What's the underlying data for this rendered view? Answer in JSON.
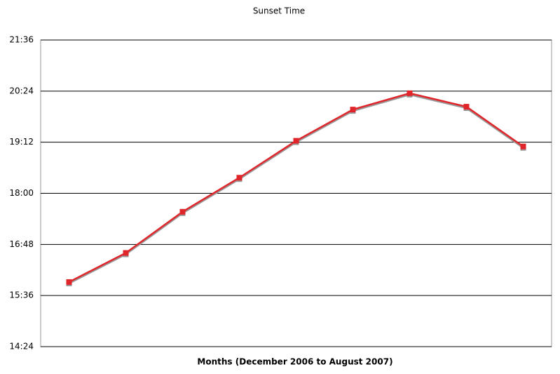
{
  "chart_data": {
    "type": "line",
    "title": "Sunset Time",
    "x_label": "Months (December 2006 to August 2007)",
    "categories": [
      null,
      null,
      null,
      null,
      null,
      null,
      null,
      null,
      null
    ],
    "series": [
      {
        "color": "#e0262b",
        "values": [
          955,
          996,
          1054,
          1102,
          1154,
          1198,
          1221,
          1202,
          1146
        ]
      }
    ],
    "ylim": [
      864,
      1296
    ],
    "yticks": [
      {
        "value": 864,
        "label": "14:24"
      },
      {
        "value": 936,
        "label": "15:36"
      },
      {
        "value": 1008,
        "label": "16:48"
      },
      {
        "value": 1080,
        "label": "18:00"
      },
      {
        "value": 1152,
        "label": "19:12"
      },
      {
        "value": 1224,
        "label": "20:24"
      },
      {
        "value": 1296,
        "label": "21:36"
      }
    ],
    "grid": true
  }
}
